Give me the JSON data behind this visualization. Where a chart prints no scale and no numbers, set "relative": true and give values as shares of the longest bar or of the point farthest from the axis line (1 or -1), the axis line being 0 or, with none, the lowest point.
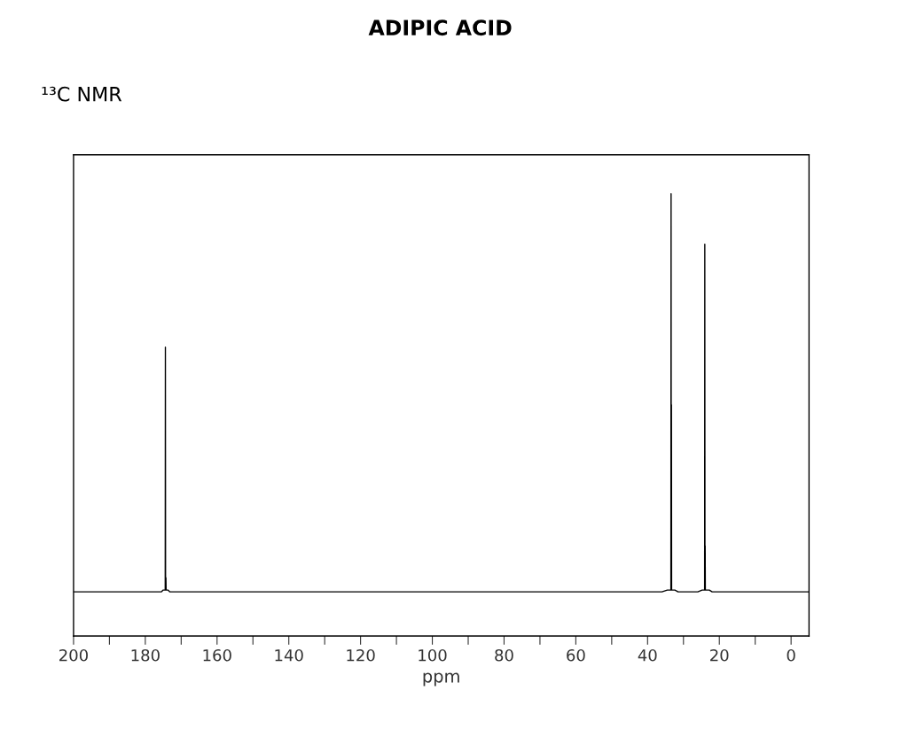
{
  "chart_data": {
    "type": "line",
    "title": "ADIPIC ACID",
    "subtitle": "¹³C NMR",
    "xlabel": "ppm",
    "relative": true,
    "grid": false,
    "legend": false,
    "marker": "none",
    "line_style": "solid",
    "tick_labels": "x",
    "xlim": [
      200,
      -5
    ],
    "xticks": [
      200,
      {
        "value": 190,
        "label": null
      },
      180,
      {
        "value": 170,
        "label": null
      },
      160,
      {
        "value": 150,
        "label": null
      },
      140,
      {
        "value": 130,
        "label": null
      },
      120,
      {
        "value": 110,
        "label": null
      },
      100,
      {
        "value": 90,
        "label": null
      },
      80,
      {
        "value": 70,
        "label": null
      },
      60,
      {
        "value": 50,
        "label": null
      },
      40,
      {
        "value": 30,
        "label": null
      },
      20,
      {
        "value": 10,
        "label": null
      },
      0
    ],
    "series": [
      {
        "color": "#000000",
        "x": [
          200,
          175.5,
          175.0,
          174.45,
          174.4,
          174.35,
          174.25,
          174.2,
          173.7,
          173.2,
          36,
          34.5,
          33.5,
          33.45,
          33.4,
          33.35,
          33.3,
          32.4,
          31.5,
          26,
          24.8,
          24.1,
          24.05,
          24.0,
          23.95,
          23.9,
          22.8,
          22,
          -5
        ],
        "values": [
          0.1,
          0.1,
          0.104,
          0.104,
          0.653,
          0.104,
          0.132,
          0.104,
          0.104,
          0.1,
          0.1,
          0.104,
          0.104,
          1.0,
          0.104,
          0.523,
          0.104,
          0.104,
          0.1,
          0.1,
          0.104,
          0.104,
          0.886,
          0.104,
          0.204,
          0.104,
          0.104,
          0.1,
          0.1
        ]
      }
    ]
  }
}
